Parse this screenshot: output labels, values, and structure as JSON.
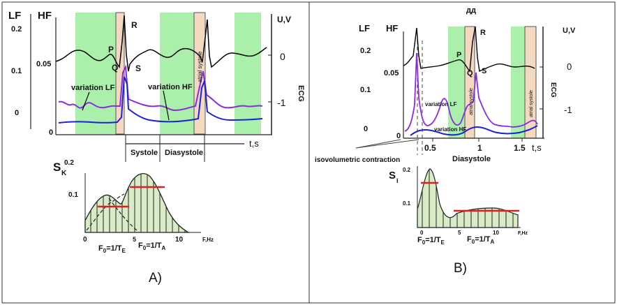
{
  "panel_a": {
    "axis_lf": "LF",
    "axis_hf": "HF",
    "axis_u": "U,V",
    "ecg_label": "ECG",
    "t_label": "t,s",
    "lf_ticks": [
      "0.2",
      "0.1",
      "0"
    ],
    "hf_ticks": [
      "0.05",
      "0"
    ],
    "u_ticks": [
      "0",
      "-1"
    ],
    "wave_letters": [
      "P",
      "Q",
      "R",
      "S"
    ],
    "variation_lf": "variation LF",
    "variation_hf": "variation HF",
    "atrial_systole": "atrial systole",
    "systole": "Systole",
    "diastole": "Diasystole",
    "spectrum_s_main": "S",
    "spectrum_s_sub": "K",
    "spectrum_y_top": "0.2",
    "spectrum_y_mid": "0.1",
    "spectrum_x_ticks": [
      "0",
      "5",
      "10"
    ],
    "spectrum_f_label": "F,Hz",
    "f0_e_prefix": "F",
    "f0_e_sub": "0",
    "f0_e_mid": "=1/T",
    "f0_e_sub2": "E",
    "f0_a_prefix": "F",
    "f0_a_sub": "0",
    "f0_a_mid": "=1/T",
    "f0_a_sub2": "A",
    "caption": "A)"
  },
  "panel_b": {
    "top_label": "дд",
    "axis_lf": "LF",
    "axis_hf": "HF",
    "axis_u": "U,V",
    "ecg_label": "ECG",
    "t_label": "t,s",
    "lf_ticks": [
      "0.2",
      "0.1",
      "0"
    ],
    "hf_ticks": [
      "0.05",
      "0"
    ],
    "u_ticks": [
      "0",
      "-1"
    ],
    "x_ticks": [
      "0.5",
      "1",
      "1.5"
    ],
    "wave_letters": [
      "P",
      "Q",
      "R",
      "S"
    ],
    "variation_lf": "variation LF",
    "variation_hf": "variation HF",
    "atrial_systole_1": "atrial systole",
    "atrial_systole_2": "atrial systole",
    "isovolumetric": "isovolumetric contraction",
    "diastole": "Diasystole",
    "spectrum_s_main": "S",
    "spectrum_s_sub": "I",
    "spectrum_y_top": "0.2",
    "spectrum_y_mid": "0.1",
    "spectrum_x_ticks": [
      "0",
      "5",
      "10"
    ],
    "spectrum_f_label": "F,Hz",
    "f0_e_prefix": "F",
    "f0_e_sub": "0",
    "f0_e_mid": "=1/T",
    "f0_e_sub2": "E",
    "f0_a_prefix": "F",
    "f0_a_sub": "0",
    "f0_a_mid": "=1/T",
    "f0_a_sub2": "A",
    "caption": "B)"
  },
  "colors": {
    "green_band": "#aaf0aa",
    "tan_band": "#f2d9bf",
    "ecg_line": "#000000",
    "lf_line": "#8a2be2",
    "hf_line": "#1a22d6",
    "level_line": "#e02020",
    "spectrum_fill": "#d9ecc8"
  }
}
